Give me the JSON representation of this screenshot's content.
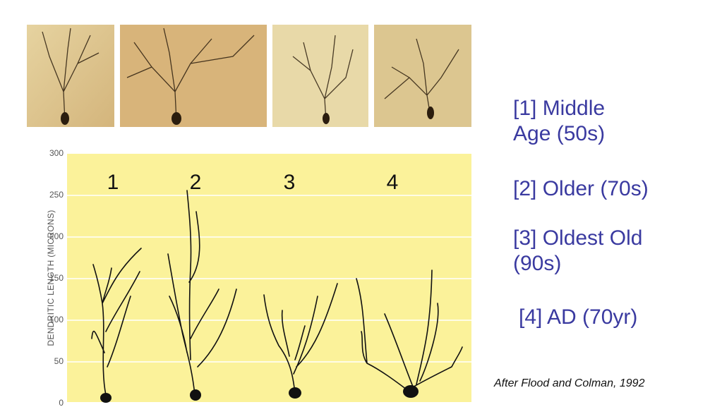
{
  "figure": {
    "y_axis_label": "DENDRITIC LENGTH (MICRONS)",
    "ylim": [
      0,
      300
    ],
    "yticks": [
      0,
      50,
      100,
      150,
      200,
      250,
      300
    ],
    "panel_labels": [
      "1",
      "2",
      "3",
      "4"
    ]
  },
  "legend": [
    {
      "lines": [
        "[1] Middle",
        "Age  (50s)"
      ]
    },
    {
      "lines": [
        "[2] Older (70s)"
      ]
    },
    {
      "lines": [
        "[3] Oldest Old",
        "(90s)"
      ]
    },
    {
      "lines": [
        "[4] AD (70yr)"
      ]
    }
  ],
  "citation": "After Flood and Colman, 1992"
}
